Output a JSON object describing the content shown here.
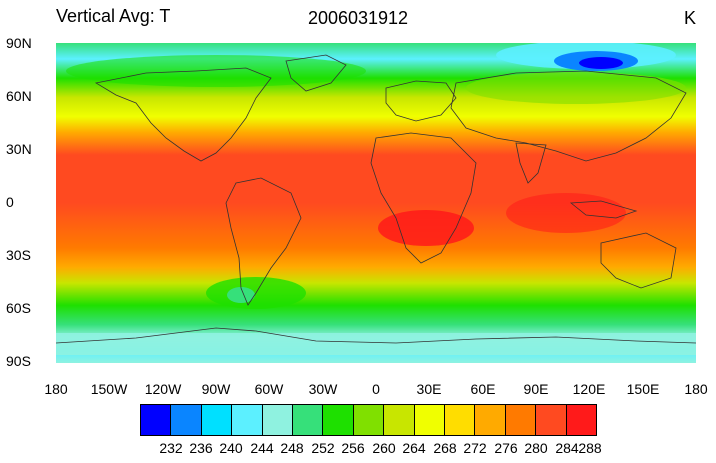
{
  "title": {
    "left": "Vertical Avg: T",
    "center": "2006031912",
    "units": "K"
  },
  "axes": {
    "lat_labels": [
      "90N",
      "60N",
      "30N",
      "0",
      "30S",
      "60S",
      "90S"
    ],
    "lon_labels": [
      "180",
      "150W",
      "120W",
      "90W",
      "60W",
      "30W",
      "0",
      "30E",
      "60E",
      "90E",
      "120E",
      "150E",
      "180"
    ]
  },
  "legend": {
    "levels": [
      "232",
      "236",
      "240",
      "244",
      "248",
      "252",
      "256",
      "260",
      "264",
      "268",
      "272",
      "276",
      "280",
      "284",
      "288"
    ],
    "colors": [
      "#0000ff",
      "#0a85ff",
      "#00e0ff",
      "#5cf0ff",
      "#8ff2e0",
      "#36e07a",
      "#1ee000",
      "#80e000",
      "#c8e600",
      "#f0ff00",
      "#ffdd00",
      "#ffaa00",
      "#ff7a00",
      "#ff4a20",
      "#ff1a1a"
    ]
  },
  "colors": {
    "hot": "#ff4a20",
    "warm": "#ff7a00",
    "mild": "#ffdd00",
    "cool": "#1ee000",
    "cold": "#00e0ff",
    "frigid": "#0000ff"
  }
}
